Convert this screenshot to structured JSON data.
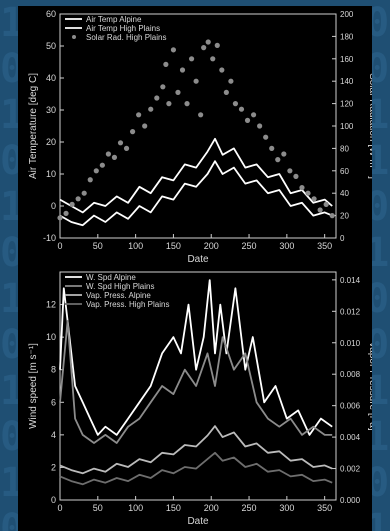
{
  "background": {
    "color": "#1f4f73",
    "digit_rows": [
      "1 0 0 1 0 1 1 0",
      "0 1 0 1 1 0 1 0",
      "1 1 0 0 1 0 0 1",
      "0 1 1 0 0 1 0 1",
      "1 0 1 1 0 0 1 0",
      "0 0 1 0 1 1 0 1",
      "1 0 0 1 1 0 1 0",
      "0 1 0 1 0 1 1 0",
      "1 1 0 1 0 0 1 1",
      "0 1 1 0 1 0 0 1",
      "1 0 1 0 0 1 1 0",
      "0 1 0 0 1 1 0 1"
    ]
  },
  "chart_data": [
    {
      "type": "line",
      "xlabel": "Date",
      "ylabel": "Air Temperature [deg C]",
      "y2label": "Solar Radiation [W m⁻²]",
      "xlim": [
        0,
        365
      ],
      "ylim": [
        -10,
        60
      ],
      "y2lim": [
        0,
        200
      ],
      "xticks": [
        0,
        50,
        100,
        150,
        200,
        250,
        300,
        350
      ],
      "yticks": [
        -10,
        0,
        10,
        20,
        30,
        40,
        50,
        60
      ],
      "y2ticks": [
        0,
        20,
        40,
        60,
        80,
        100,
        120,
        140,
        160,
        180,
        200
      ],
      "legend_position": "top-left",
      "series": [
        {
          "name": "Air Temp Alpine",
          "axis": "left",
          "style": "line",
          "color": "#ffffff",
          "x": [
            0,
            15,
            30,
            45,
            60,
            75,
            90,
            105,
            120,
            135,
            150,
            165,
            180,
            195,
            205,
            215,
            230,
            245,
            260,
            275,
            290,
            305,
            320,
            335,
            350,
            360
          ],
          "y": [
            -3,
            -5,
            -6,
            -3,
            -5,
            -2,
            -4,
            0,
            -2,
            3,
            2,
            7,
            6,
            10,
            14,
            10,
            12,
            7,
            8,
            4,
            5,
            0,
            1,
            -3,
            -2,
            -3
          ]
        },
        {
          "name": "Air Temp High Plains",
          "axis": "left",
          "style": "line",
          "color": "#ffffff",
          "x": [
            0,
            15,
            30,
            45,
            60,
            75,
            90,
            105,
            120,
            135,
            150,
            165,
            180,
            195,
            205,
            215,
            230,
            245,
            260,
            275,
            290,
            305,
            320,
            335,
            350,
            360
          ],
          "y": [
            2,
            0,
            -2,
            1,
            0,
            3,
            1,
            6,
            4,
            9,
            8,
            13,
            12,
            17,
            21,
            16,
            18,
            12,
            13,
            9,
            10,
            4,
            5,
            1,
            2,
            0
          ]
        },
        {
          "name": "Solar Rad. High Plains",
          "axis": "right",
          "style": "markers",
          "color": "#8c8c8c",
          "x": [
            0,
            8,
            16,
            24,
            32,
            40,
            48,
            56,
            64,
            72,
            80,
            88,
            96,
            104,
            112,
            120,
            128,
            136,
            140,
            144,
            150,
            156,
            162,
            168,
            174,
            180,
            186,
            190,
            196,
            202,
            208,
            214,
            220,
            226,
            232,
            240,
            248,
            256,
            264,
            272,
            280,
            288,
            296,
            304,
            312,
            320,
            328,
            336,
            344,
            352,
            360
          ],
          "y": [
            18,
            22,
            30,
            35,
            40,
            52,
            60,
            65,
            75,
            72,
            85,
            80,
            95,
            110,
            100,
            115,
            125,
            135,
            155,
            120,
            168,
            130,
            150,
            120,
            160,
            140,
            110,
            170,
            175,
            160,
            172,
            150,
            130,
            140,
            120,
            115,
            105,
            110,
            100,
            90,
            80,
            70,
            75,
            60,
            55,
            45,
            40,
            35,
            25,
            30,
            20
          ]
        }
      ]
    },
    {
      "type": "line",
      "xlabel": "Date",
      "ylabel": "Wind speed [m s⁻¹]",
      "y2label": "Vapor Pressure [Pa]",
      "xlim": [
        0,
        365
      ],
      "ylim": [
        0,
        14
      ],
      "y2lim": [
        0,
        0.0145
      ],
      "xticks": [
        0,
        50,
        100,
        150,
        200,
        250,
        300,
        350
      ],
      "yticks": [
        0,
        2,
        4,
        6,
        8,
        10,
        12
      ],
      "y2ticks": [
        0.0,
        0.002,
        0.004,
        0.006,
        0.008,
        0.01,
        0.012,
        0.014
      ],
      "y2tick_labels": [
        "0.000",
        "0.002",
        "0.004",
        "0.006",
        "0.008",
        "0.010",
        "0.012",
        "0.014"
      ],
      "legend_position": "top-left",
      "series": [
        {
          "name": "W. Spd Alpine",
          "axis": "left",
          "color": "#ffffff",
          "x": [
            0,
            5,
            10,
            20,
            30,
            40,
            50,
            60,
            75,
            90,
            105,
            120,
            135,
            150,
            160,
            170,
            180,
            190,
            198,
            205,
            212,
            220,
            232,
            245,
            255,
            270,
            285,
            300,
            315,
            330,
            345,
            360
          ],
          "y": [
            8,
            13,
            11,
            7,
            6,
            5,
            4,
            4.5,
            4,
            5,
            6,
            7,
            9,
            10,
            9,
            12,
            8,
            10,
            13.5,
            9,
            12,
            9,
            13,
            8,
            10,
            6,
            7,
            5,
            5.5,
            4,
            5,
            4.5
          ]
        },
        {
          "name": "W. Spd High Plains",
          "axis": "left",
          "color": "#8c8c8c",
          "x": [
            0,
            10,
            20,
            30,
            45,
            60,
            75,
            90,
            105,
            120,
            135,
            150,
            165,
            180,
            195,
            205,
            215,
            230,
            245,
            260,
            275,
            290,
            305,
            320,
            335,
            350,
            360
          ],
          "y": [
            6,
            11,
            5,
            4,
            3.5,
            4,
            3.5,
            4.5,
            5,
            6,
            7,
            6.5,
            8,
            7,
            9,
            7,
            10,
            8,
            9,
            6,
            5,
            4.5,
            5,
            4,
            4.5,
            4,
            4
          ]
        },
        {
          "name": "Vap. Press. Alpine",
          "axis": "right",
          "color": "#bbbbbb",
          "x": [
            0,
            15,
            30,
            45,
            60,
            75,
            90,
            105,
            120,
            135,
            150,
            165,
            180,
            195,
            205,
            215,
            230,
            245,
            260,
            275,
            290,
            305,
            320,
            335,
            350,
            360
          ],
          "y": [
            0.0022,
            0.0019,
            0.0017,
            0.002,
            0.0018,
            0.0023,
            0.0021,
            0.0026,
            0.0024,
            0.003,
            0.0029,
            0.0035,
            0.0034,
            0.0041,
            0.0047,
            0.004,
            0.0043,
            0.0034,
            0.0036,
            0.003,
            0.0031,
            0.0025,
            0.0026,
            0.0021,
            0.0022,
            0.002
          ]
        },
        {
          "name": "Vap. Press. High Plains",
          "axis": "right",
          "color": "#6e6e6e",
          "x": [
            0,
            15,
            30,
            45,
            60,
            75,
            90,
            105,
            120,
            135,
            150,
            165,
            180,
            195,
            205,
            215,
            230,
            245,
            260,
            275,
            290,
            305,
            320,
            335,
            350,
            360
          ],
          "y": [
            0.0015,
            0.0012,
            0.001,
            0.0013,
            0.0011,
            0.0014,
            0.0012,
            0.0016,
            0.0014,
            0.0019,
            0.0017,
            0.0021,
            0.002,
            0.0026,
            0.003,
            0.0025,
            0.0027,
            0.0021,
            0.0023,
            0.0018,
            0.0019,
            0.0015,
            0.0016,
            0.0012,
            0.0013,
            0.0011
          ]
        }
      ]
    }
  ]
}
